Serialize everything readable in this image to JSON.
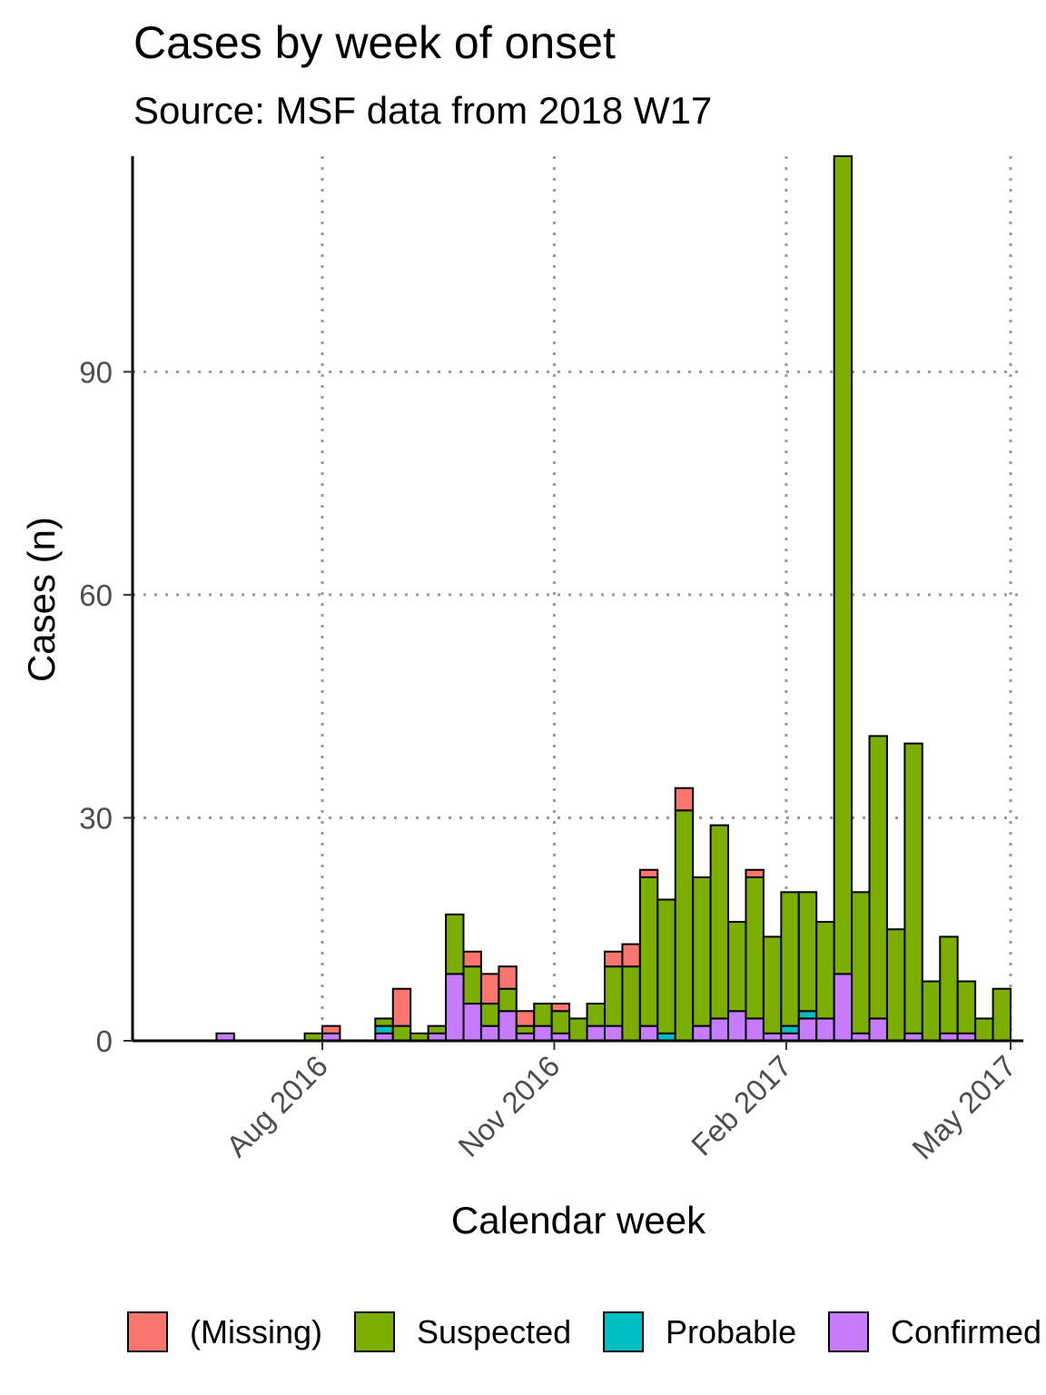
{
  "chart_data": {
    "type": "bar",
    "stacked": true,
    "title": "Cases by week of onset",
    "subtitle": "Source: MSF data from 2018 W17",
    "xlabel": "Calendar week",
    "ylabel": "Cases (n)",
    "x_ticks": [
      "Aug 2016",
      "Nov 2016",
      "Feb 2017",
      "May 2017"
    ],
    "y_ticks": [
      0,
      30,
      60,
      90
    ],
    "ylim": [
      0,
      119
    ],
    "grid": "dotted major gridlines",
    "legend_position": "bottom",
    "weeks": [
      "2016-06-20",
      "2016-06-27",
      "2016-07-04",
      "2016-07-11",
      "2016-07-18",
      "2016-07-25",
      "2016-08-01",
      "2016-08-08",
      "2016-08-15",
      "2016-08-22",
      "2016-08-29",
      "2016-09-05",
      "2016-09-12",
      "2016-09-19",
      "2016-09-26",
      "2016-10-03",
      "2016-10-10",
      "2016-10-17",
      "2016-10-24",
      "2016-10-31",
      "2016-11-07",
      "2016-11-14",
      "2016-11-21",
      "2016-11-28",
      "2016-12-05",
      "2016-12-12",
      "2016-12-19",
      "2016-12-26",
      "2017-01-02",
      "2017-01-09",
      "2017-01-16",
      "2017-01-23",
      "2017-01-30",
      "2017-02-06",
      "2017-02-13",
      "2017-02-20",
      "2017-02-27",
      "2017-03-06",
      "2017-03-13",
      "2017-03-20",
      "2017-03-27",
      "2017-04-03",
      "2017-04-10"
    ],
    "series": [
      {
        "name": "Confirmed",
        "color": "#C77CFF",
        "values": [
          1,
          0,
          0,
          0,
          0,
          0,
          1,
          0,
          0,
          1,
          0,
          0,
          1,
          9,
          5,
          2,
          4,
          1,
          2,
          1,
          0,
          2,
          2,
          0,
          2,
          0,
          0,
          2,
          3,
          4,
          3,
          1,
          1,
          3,
          3,
          9,
          1,
          3,
          0,
          1,
          0,
          1,
          1
        ]
      },
      {
        "name": "Probable",
        "color": "#00BFC4",
        "values": [
          0,
          0,
          0,
          0,
          0,
          0,
          0,
          0,
          0,
          1,
          0,
          0,
          0,
          0,
          0,
          0,
          0,
          0,
          0,
          0,
          0,
          0,
          0,
          0,
          0,
          1,
          0,
          0,
          0,
          0,
          0,
          0,
          1,
          1,
          0,
          0,
          0,
          0,
          0,
          0,
          0,
          0,
          0
        ]
      },
      {
        "name": "Suspected",
        "color": "#7CAE00",
        "values": [
          0,
          0,
          0,
          0,
          0,
          1,
          0,
          0,
          0,
          1,
          2,
          1,
          1,
          8,
          5,
          3,
          3,
          1,
          3,
          3,
          3,
          3,
          8,
          10,
          20,
          18,
          31,
          20,
          26,
          12,
          19,
          13,
          18,
          16,
          13,
          110,
          19,
          38,
          15,
          39,
          8,
          13,
          7
        ]
      },
      {
        "name": "(Missing)",
        "color": "#F8766D",
        "values": [
          0,
          0,
          0,
          0,
          0,
          0,
          1,
          0,
          0,
          0,
          5,
          0,
          0,
          0,
          2,
          4,
          3,
          2,
          0,
          1,
          0,
          0,
          2,
          3,
          1,
          0,
          3,
          0,
          0,
          0,
          1,
          0,
          0,
          0,
          0,
          0,
          0,
          0,
          0,
          0,
          0,
          0,
          0
        ]
      }
    ],
    "extra_weeks": [
      "2017-04-17",
      "2017-04-24"
    ],
    "extra_values": {
      "Suspected": [
        3,
        7
      ]
    },
    "legend_order": [
      "(Missing)",
      "Suspected",
      "Probable",
      "Confirmed"
    ]
  }
}
